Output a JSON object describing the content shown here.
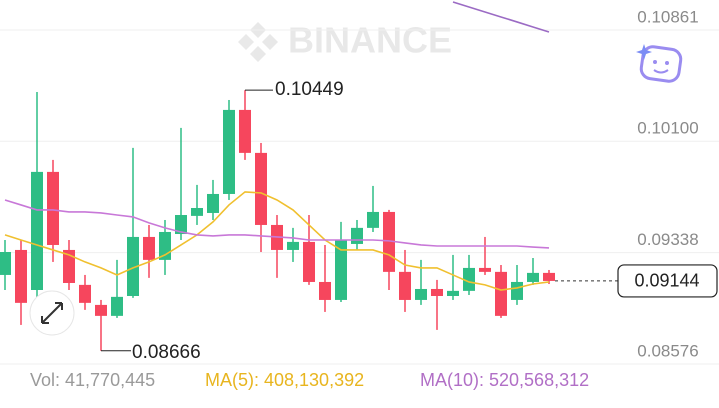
{
  "chart_data": {
    "type": "candlestick",
    "watermark": "BINANCE",
    "up_color": "#2ebd85",
    "down_color": "#f6465d",
    "open": [
      0.09185,
      0.09356,
      0.09082,
      0.0989,
      0.09356,
      0.09117,
      0.0898,
      0.08905,
      0.09041,
      0.09445,
      0.09288,
      0.09465,
      0.09589,
      0.09609,
      0.09739,
      0.10314,
      0.1002,
      0.09527,
      0.09356,
      0.09411,
      0.09137,
      0.09014,
      0.09397,
      0.09507,
      0.09616,
      0.09206,
      0.09014,
      0.09089,
      0.09041,
      0.09076,
      0.09233,
      0.09206,
      0.09014,
      0.09137,
      0.09199
    ],
    "high": [
      0.09424,
      0.09424,
      0.10437,
      0.09972,
      0.09424,
      0.09185,
      0.09014,
      0.09288,
      0.10054,
      0.09527,
      0.09561,
      0.10191,
      0.09801,
      0.09835,
      0.10382,
      0.10449,
      0.10088,
      0.09595,
      0.09507,
      0.09595,
      0.0939,
      0.09548,
      0.09561,
      0.09794,
      0.0963,
      0.09356,
      0.09288,
      0.09151,
      0.09322,
      0.09322,
      0.09445,
      0.09253,
      0.09253,
      0.09301,
      0.09219
    ],
    "low": [
      0.09082,
      0.08843,
      0.09014,
      0.09274,
      0.09082,
      0.08946,
      0.08666,
      0.08891,
      0.09028,
      0.09165,
      0.09185,
      0.09424,
      0.09527,
      0.09561,
      0.09698,
      0.09972,
      0.09342,
      0.09165,
      0.09274,
      0.09117,
      0.08932,
      0.09,
      0.09356,
      0.09479,
      0.09082,
      0.08932,
      0.0898,
      0.08809,
      0.09014,
      0.09048,
      0.09185,
      0.08891,
      0.0898,
      0.09117,
      0.09123
    ],
    "close": [
      0.09342,
      0.08994,
      0.0989,
      0.0939,
      0.0913,
      0.08994,
      0.08905,
      0.09035,
      0.09445,
      0.09288,
      0.09479,
      0.09595,
      0.09643,
      0.09739,
      0.10314,
      0.1002,
      0.09527,
      0.09356,
      0.09411,
      0.09137,
      0.09014,
      0.09424,
      0.09507,
      0.09616,
      0.09206,
      0.09014,
      0.09089,
      0.09041,
      0.09076,
      0.09233,
      0.09206,
      0.08905,
      0.09137,
      0.09199,
      0.09144
    ],
    "lines": [
      {
        "color": "#f0c02f",
        "values": [
          0.09459,
          0.09424,
          0.0939,
          0.09356,
          0.09322,
          0.09274,
          0.09233,
          0.09185,
          0.09233,
          0.09274,
          0.09322,
          0.0939,
          0.09459,
          0.09548,
          0.09664,
          0.09753,
          0.09746,
          0.09698,
          0.0963,
          0.09527,
          0.09424,
          0.09356,
          0.09356,
          0.09356,
          0.09322,
          0.09253,
          0.09233,
          0.09233,
          0.09185,
          0.09137,
          0.09117,
          0.09082,
          0.09096,
          0.09123,
          0.09137
        ]
      },
      {
        "color": "#c878d8",
        "values": [
          0.09698,
          0.09664,
          0.0963,
          0.0963,
          0.09616,
          0.09616,
          0.09609,
          0.09595,
          0.09582,
          0.09541,
          0.09507,
          0.09479,
          0.09459,
          0.09452,
          0.09459,
          0.09459,
          0.09452,
          0.09445,
          0.09438,
          0.09424,
          0.09424,
          0.09424,
          0.09424,
          0.09424,
          0.09418,
          0.09404,
          0.0939,
          0.09383,
          0.09383,
          0.09383,
          0.09383,
          0.09383,
          0.09383,
          0.09376,
          0.0937
        ]
      },
      {
        "color": "#9b6bc4",
        "values": [
          null,
          null,
          null,
          null,
          null,
          null,
          null,
          null,
          null,
          null,
          null,
          null,
          null,
          null,
          null,
          null,
          null,
          null,
          null,
          null,
          null,
          null,
          null,
          null,
          null,
          null,
          null,
          null,
          0.11052,
          0.11018,
          0.10984,
          0.1095,
          0.10916,
          0.10881,
          0.10847
        ]
      }
    ],
    "ylim": [
      0.08521,
      0.11066
    ],
    "yticks": [
      0.10861,
      {
        "value": 0.101,
        "label": "0.10100"
      },
      0.09338,
      0.08576
    ],
    "grid": true,
    "footer": [
      {
        "text": "Vol: 41,770,445",
        "color": "#9a9a9a"
      },
      {
        "text": "MA(5): 408,130,392",
        "color": "#e8b51f"
      },
      {
        "text": "MA(10): 520,568,312",
        "color": "#b16fc6"
      }
    ]
  }
}
